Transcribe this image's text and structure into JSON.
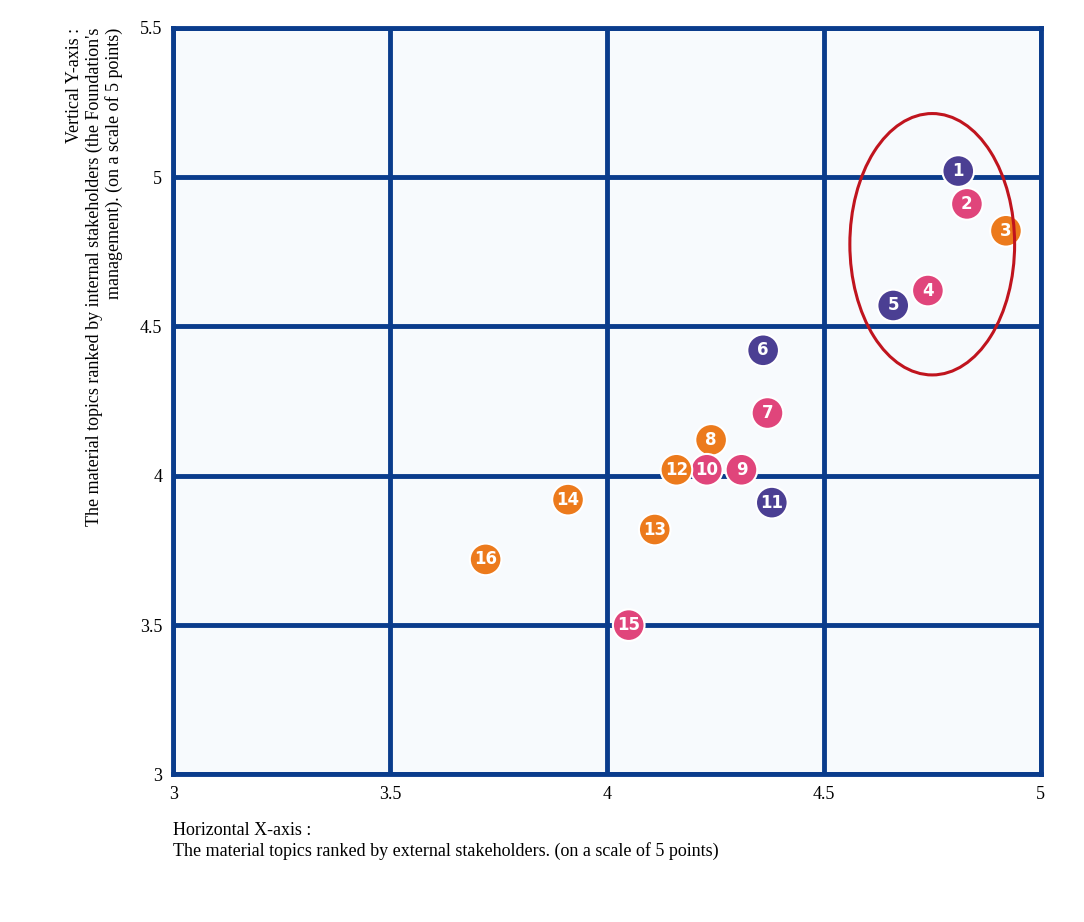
{
  "chart_data": {
    "type": "scatter",
    "x_label": "Horizontal X-axis :\nThe material topics ranked by external stakeholders. (on a scale of 5 points)",
    "y_label": "Vertical Y-axis :\nThe material topics ranked by internal stakeholders (the Foundation's\nmanagement). (on a scale of 5 points)",
    "categories": [
      "1",
      "2",
      "3",
      "4",
      "5",
      "6",
      "7",
      "8",
      "9",
      "10",
      "11",
      "12",
      "13",
      "14",
      "15",
      "16"
    ],
    "x": [
      4.81,
      4.83,
      4.92,
      4.74,
      4.66,
      4.36,
      4.37,
      4.24,
      4.31,
      4.23,
      4.38,
      4.16,
      4.11,
      3.91,
      4.05,
      3.72
    ],
    "values": [
      5.02,
      4.91,
      4.82,
      4.62,
      4.57,
      4.42,
      4.21,
      4.12,
      4.02,
      4.02,
      3.91,
      4.02,
      3.82,
      3.92,
      3.5,
      3.72
    ],
    "colors": [
      "#4b3f93",
      "#e0457b",
      "#ec7a1c",
      "#e0457b",
      "#4b3f93",
      "#4b3f93",
      "#e0457b",
      "#ec7a1c",
      "#e0457b",
      "#e0457b",
      "#4b3f93",
      "#ec7a1c",
      "#ec7a1c",
      "#ec7a1c",
      "#e0457b",
      "#ec7a1c"
    ],
    "xlim": [
      3,
      5
    ],
    "ylim": [
      3,
      5.5
    ],
    "xticks": [
      3,
      3.5,
      4,
      4.5,
      5
    ],
    "yticks": [
      3,
      3.5,
      4,
      4.5,
      5,
      5.5
    ],
    "grid": true,
    "data_labels": true
  }
}
